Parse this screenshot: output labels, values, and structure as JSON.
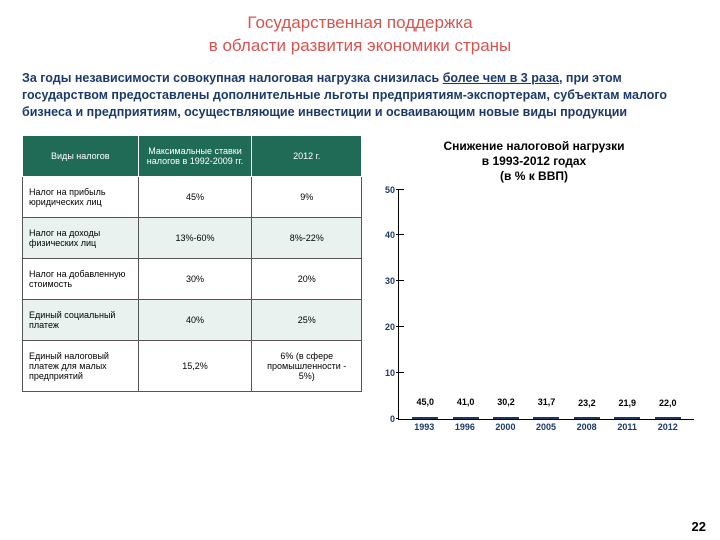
{
  "title_line1": "Государственная поддержка",
  "title_line2": "в области развития экономики страны",
  "intro_part1": "За годы независимости совокупная налоговая нагрузка снизилась ",
  "intro_emph": "более чем в 3 раза",
  "intro_part2": ", при этом государством предоставлены дополнительные льготы предприятиям-экспортерам, субъектам малого бизнеса и предприятиям, осуществляющие инвестиции и осваивающим новые виды продукции",
  "table": {
    "headers": [
      "Виды налогов",
      "Максимальные ставки налогов в 1992-2009 гг.",
      "2012 г."
    ],
    "rows": [
      [
        "Налог на прибыль юридических лиц",
        "45%",
        "9%"
      ],
      [
        "Налог на доходы физических лиц",
        "13%-60%",
        "8%-22%"
      ],
      [
        "Налог на добавленную стоимость",
        "30%",
        "20%"
      ],
      [
        "Единый социальный платеж",
        "40%",
        "25%"
      ],
      [
        "Единый налоговый платеж для малых предприятий",
        "15,2%",
        "6% (в сфере промышленности - 5%)"
      ]
    ]
  },
  "chart": {
    "type": "bar",
    "title_line1": "Снижение налоговой нагрузки",
    "title_line2": "в 1993-2012 годах",
    "title_line3": "(в % к ВВП)",
    "categories": [
      "1993",
      "1996",
      "2000",
      "2005",
      "2008",
      "2011",
      "2012"
    ],
    "values": [
      45.0,
      41.0,
      30.2,
      31.7,
      23.2,
      21.9,
      22.0
    ],
    "labels": [
      "45,0",
      "41,0",
      "30,2",
      "31,7",
      "23,2",
      "21,9",
      "22,0"
    ],
    "ylim": [
      0,
      50
    ],
    "ytick_step": 10,
    "bar_color": "#3b66a5",
    "axis_label_color": "#1b3a6b",
    "background_color": "#ffffff"
  },
  "page_number": "22"
}
